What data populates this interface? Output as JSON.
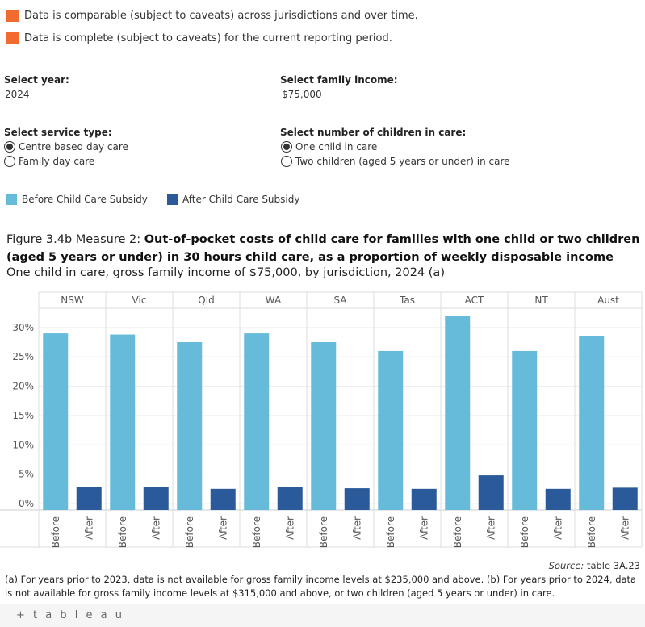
{
  "indicators": [
    {
      "text": "Data is comparable (subject to caveats) across jurisdictions and over time.",
      "color": "#f26a2e"
    },
    {
      "text": "Data is complete (subject to caveats) for the current reporting period.",
      "color": "#f26a2e"
    }
  ],
  "controls": {
    "year_label": "Select year:",
    "year_value": "2024",
    "income_label": "Select family income:",
    "income_value": "$75,000",
    "service_label": "Select service type:",
    "service_options": [
      {
        "label": "Centre based day care",
        "selected": true
      },
      {
        "label": "Family day care",
        "selected": false
      }
    ],
    "children_label": "Select number of children in care:",
    "children_options": [
      {
        "label": "One child in care",
        "selected": true
      },
      {
        "label": "Two children (aged 5 years or under) in care",
        "selected": false
      }
    ]
  },
  "legend": [
    {
      "label": "Before Child Care Subsidy",
      "color": "#66bbdb"
    },
    {
      "label": "After Child Care Subsidy",
      "color": "#2a5a9a"
    }
  ],
  "title": {
    "prefix": "Figure 3.4b Measure 2: ",
    "bold": "Out-of-pocket costs of child care for families with one child or two children (aged 5 years or under) in 30 hours child care, as a proportion of weekly disposable income"
  },
  "subtitle": "One child in care, gross family income of $75,000, by jurisdiction, 2024 (a)",
  "chart_data": {
    "type": "bar",
    "categories": [
      "NSW",
      "Vic",
      "Qld",
      "WA",
      "SA",
      "Tas",
      "ACT",
      "NT",
      "Aust"
    ],
    "sub_categories": [
      "Before",
      "After"
    ],
    "series": [
      {
        "name": "Before Child Care Subsidy",
        "color": "#66bbdb",
        "values": [
          29.0,
          28.8,
          27.5,
          29.0,
          27.5,
          26.0,
          32.0,
          26.0,
          28.5
        ]
      },
      {
        "name": "After Child Care Subsidy",
        "color": "#2a5a9a",
        "values": [
          2.8,
          2.8,
          2.5,
          2.8,
          2.6,
          2.5,
          4.8,
          2.5,
          2.7
        ]
      }
    ],
    "yticks": [
      "0%",
      "5%",
      "10%",
      "15%",
      "20%",
      "25%",
      "30%"
    ],
    "ylim": [
      0,
      33
    ],
    "grid": true,
    "legend_position": "top-left"
  },
  "source": {
    "prefix": "Source:",
    "text": " table 3A.23"
  },
  "notes": "(a) For years prior to 2023, data is not available for gross family income levels at $235,000 and above. (b) For years prior to 2024, data is not available for gross family income levels at $315,000 and above, or two children (aged 5 years or under) in care.",
  "footer": {
    "logo": "+ t a b l e a u"
  }
}
